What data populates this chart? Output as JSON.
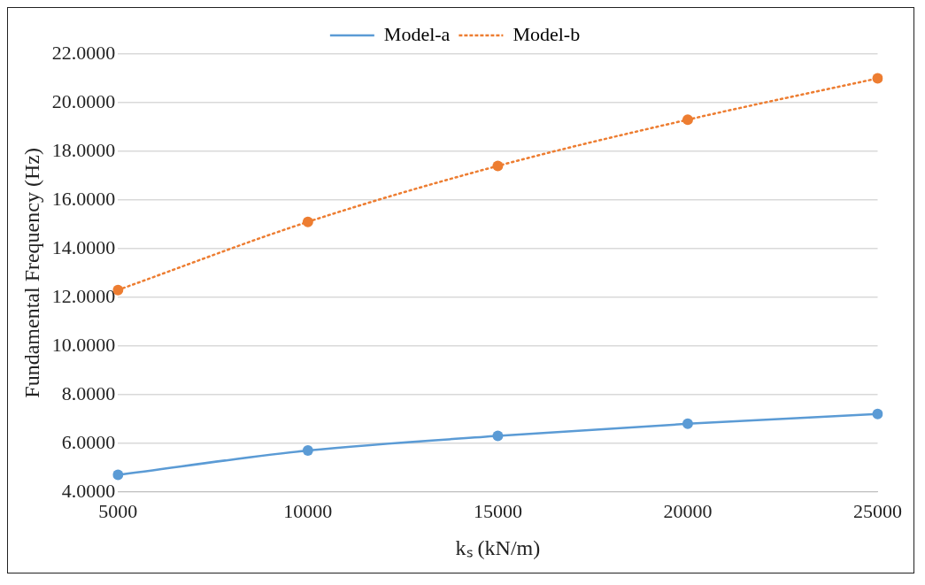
{
  "chart_data": {
    "type": "line",
    "xlabel": "kₛ (kN/m)",
    "ylabel": "Fundamental Frequency (Hz)",
    "categories": [
      "5000",
      "10000",
      "15000",
      "20000",
      "25000"
    ],
    "series": [
      {
        "name": "Model-a",
        "color": "#5b9bd5",
        "values": [
          4.7,
          5.7,
          6.3,
          6.8,
          7.2
        ],
        "line_style": "solid"
      },
      {
        "name": "Model-b",
        "color": "#ed7d31",
        "values": [
          12.3,
          15.1,
          17.4,
          19.3,
          21.0
        ],
        "line_style": "dotted"
      }
    ],
    "ylim": [
      4,
      22
    ],
    "yticks": [
      {
        "value": 4,
        "label": "4.0000"
      },
      {
        "value": 6,
        "label": "6.0000"
      },
      {
        "value": 8,
        "label": "8.0000"
      },
      {
        "value": 10,
        "label": "10.0000"
      },
      {
        "value": 12,
        "label": "12.0000"
      },
      {
        "value": 14,
        "label": "14.0000"
      },
      {
        "value": 16,
        "label": "16.0000"
      },
      {
        "value": 18,
        "label": "18.0000"
      },
      {
        "value": 20,
        "label": "20.0000"
      },
      {
        "value": 22,
        "label": "22.0000"
      }
    ],
    "grid": "y",
    "legend": "top",
    "marker": "circle"
  }
}
